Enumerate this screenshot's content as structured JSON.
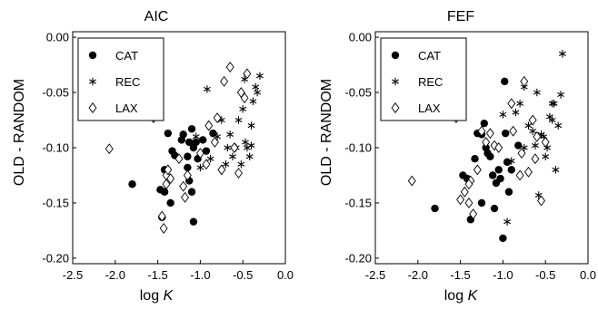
{
  "chart_data": [
    {
      "type": "scatter",
      "title": "AIC",
      "xlabel": "log",
      "xlabel_var": "K",
      "ylabel": "OLD - RANDOM",
      "xlim": [
        -2.5,
        0.0
      ],
      "ylim": [
        -0.205,
        0.005
      ],
      "xticks": [
        "-2.5",
        "-2.0",
        "-1.5",
        "-1.0",
        "-0.5",
        "0.0"
      ],
      "yticks": [
        "0.00",
        "-0.05",
        "-0.10",
        "-0.15",
        "-0.20"
      ],
      "legend_position": "top-left",
      "series": [
        {
          "name": "CAT",
          "marker": "filled-circle",
          "points": [
            [
              -1.8,
              -0.133
            ],
            [
              -1.47,
              -0.138
            ],
            [
              -1.42,
              -0.12
            ],
            [
              -1.38,
              -0.087
            ],
            [
              -1.33,
              -0.103
            ],
            [
              -1.3,
              -0.107
            ],
            [
              -1.42,
              -0.14
            ],
            [
              -1.35,
              -0.15
            ],
            [
              -1.22,
              -0.093
            ],
            [
              -1.2,
              -0.088
            ],
            [
              -1.13,
              -0.095
            ],
            [
              -1.1,
              -0.083
            ],
            [
              -1.08,
              -0.1
            ],
            [
              -1.05,
              -0.095
            ],
            [
              -1.03,
              -0.11
            ],
            [
              -1.15,
              -0.108
            ],
            [
              -1.13,
              -0.13
            ],
            [
              -1.1,
              -0.14
            ],
            [
              -1.15,
              -0.118
            ],
            [
              -0.97,
              -0.093
            ],
            [
              -0.93,
              -0.103
            ],
            [
              -0.85,
              -0.087
            ],
            [
              -1.08,
              -0.167
            ],
            [
              -1.45,
              -0.163
            ]
          ]
        },
        {
          "name": "REC",
          "marker": "asterisk",
          "points": [
            [
              -0.92,
              -0.047
            ],
            [
              -0.75,
              -0.075
            ],
            [
              -0.65,
              -0.088
            ],
            [
              -0.58,
              -0.1
            ],
            [
              -0.55,
              -0.075
            ],
            [
              -0.5,
              -0.065
            ],
            [
              -0.48,
              -0.038
            ],
            [
              -0.47,
              -0.095
            ],
            [
              -0.45,
              -0.1
            ],
            [
              -0.42,
              -0.108
            ],
            [
              -0.4,
              -0.098
            ],
            [
              -0.38,
              -0.058
            ],
            [
              -0.35,
              -0.045
            ],
            [
              -0.33,
              -0.05
            ],
            [
              -0.3,
              -0.035
            ],
            [
              -0.52,
              -0.115
            ],
            [
              -0.62,
              -0.108
            ],
            [
              -0.7,
              -0.115
            ],
            [
              -0.8,
              -0.09
            ],
            [
              -1.0,
              -0.118
            ],
            [
              -1.05,
              -0.09
            ],
            [
              -0.68,
              -0.1
            ],
            [
              -0.4,
              -0.08
            ],
            [
              -0.88,
              -0.11
            ]
          ]
        },
        {
          "name": "LAX",
          "marker": "open-diamond",
          "points": [
            [
              -2.07,
              -0.101
            ],
            [
              -1.55,
              -0.073
            ],
            [
              -1.4,
              -0.125
            ],
            [
              -1.38,
              -0.12
            ],
            [
              -1.45,
              -0.162
            ],
            [
              -1.43,
              -0.173
            ],
            [
              -1.4,
              -0.133
            ],
            [
              -1.2,
              -0.135
            ],
            [
              -1.18,
              -0.145
            ],
            [
              -1.15,
              -0.125
            ],
            [
              -1.0,
              -0.105
            ],
            [
              -0.93,
              -0.115
            ],
            [
              -0.9,
              -0.08
            ],
            [
              -0.8,
              -0.073
            ],
            [
              -0.72,
              -0.04
            ],
            [
              -0.65,
              -0.027
            ],
            [
              -0.6,
              -0.1
            ],
            [
              -0.55,
              -0.123
            ],
            [
              -0.52,
              -0.05
            ],
            [
              -0.48,
              -0.055
            ],
            [
              -0.45,
              -0.033
            ],
            [
              -0.75,
              -0.12
            ],
            [
              -0.83,
              -0.095
            ],
            [
              -1.35,
              -0.128
            ],
            [
              -1.25,
              -0.11
            ]
          ]
        }
      ]
    },
    {
      "type": "scatter",
      "title": "FEF",
      "xlabel": "log",
      "xlabel_var": "K",
      "ylabel": "OLD - RANDOM",
      "xlim": [
        -2.5,
        0.0
      ],
      "ylim": [
        -0.205,
        0.005
      ],
      "xticks": [
        "-2.5",
        "-2.0",
        "-1.5",
        "-1.0",
        "-0.5",
        "0.0"
      ],
      "yticks": [
        "0.00",
        "-0.05",
        "-0.10",
        "-0.15",
        "-0.20"
      ],
      "legend_position": "top-left",
      "series": [
        {
          "name": "CAT",
          "marker": "filled-circle",
          "points": [
            [
              -1.8,
              -0.155
            ],
            [
              -1.47,
              -0.125
            ],
            [
              -1.42,
              -0.128
            ],
            [
              -1.38,
              -0.165
            ],
            [
              -1.33,
              -0.11
            ],
            [
              -1.3,
              -0.087
            ],
            [
              -1.25,
              -0.088
            ],
            [
              -1.22,
              -0.078
            ],
            [
              -1.2,
              -0.1
            ],
            [
              -1.18,
              -0.105
            ],
            [
              -1.15,
              -0.108
            ],
            [
              -1.12,
              -0.125
            ],
            [
              -1.08,
              -0.132
            ],
            [
              -1.05,
              -0.12
            ],
            [
              -1.03,
              -0.128
            ],
            [
              -0.98,
              -0.04
            ],
            [
              -0.97,
              -0.087
            ],
            [
              -0.95,
              -0.113
            ],
            [
              -0.9,
              -0.12
            ],
            [
              -0.82,
              -0.098
            ],
            [
              -1.0,
              -0.182
            ],
            [
              -1.1,
              -0.155
            ],
            [
              -1.25,
              -0.15
            ],
            [
              -0.93,
              -0.14
            ]
          ]
        },
        {
          "name": "REC",
          "marker": "asterisk",
          "points": [
            [
              -0.3,
              -0.015
            ],
            [
              -0.32,
              -0.052
            ],
            [
              -0.35,
              -0.08
            ],
            [
              -0.38,
              -0.12
            ],
            [
              -0.4,
              -0.06
            ],
            [
              -0.42,
              -0.075
            ],
            [
              -0.45,
              -0.072
            ],
            [
              -0.48,
              -0.1
            ],
            [
              -0.5,
              -0.108
            ],
            [
              -0.52,
              -0.09
            ],
            [
              -0.55,
              -0.088
            ],
            [
              -0.58,
              -0.143
            ],
            [
              -0.62,
              -0.098
            ],
            [
              -0.65,
              -0.085
            ],
            [
              -0.7,
              -0.08
            ],
            [
              -0.75,
              -0.1
            ],
            [
              -0.8,
              -0.06
            ],
            [
              -0.85,
              -0.068
            ],
            [
              -0.9,
              -0.112
            ],
            [
              -1.0,
              -0.07
            ],
            [
              -0.95,
              -0.167
            ],
            [
              -0.75,
              -0.045
            ],
            [
              -0.6,
              -0.05
            ],
            [
              -0.42,
              -0.06
            ]
          ]
        },
        {
          "name": "LAX",
          "marker": "open-diamond",
          "points": [
            [
              -2.07,
              -0.13
            ],
            [
              -1.55,
              -0.073
            ],
            [
              -1.5,
              -0.147
            ],
            [
              -1.45,
              -0.14
            ],
            [
              -1.4,
              -0.15
            ],
            [
              -1.38,
              -0.13
            ],
            [
              -1.35,
              -0.16
            ],
            [
              -1.3,
              -0.12
            ],
            [
              -1.25,
              -0.085
            ],
            [
              -1.2,
              -0.095
            ],
            [
              -1.1,
              -0.098
            ],
            [
              -1.05,
              -0.1
            ],
            [
              -0.9,
              -0.06
            ],
            [
              -0.8,
              -0.125
            ],
            [
              -0.75,
              -0.04
            ],
            [
              -0.7,
              -0.122
            ],
            [
              -0.65,
              -0.075
            ],
            [
              -0.6,
              -0.09
            ],
            [
              -0.55,
              -0.148
            ],
            [
              -0.5,
              -0.095
            ],
            [
              -0.88,
              -0.085
            ],
            [
              -0.62,
              -0.11
            ],
            [
              -1.15,
              -0.087
            ],
            [
              -0.78,
              -0.105
            ],
            [
              -1.4,
              -0.133
            ]
          ]
        }
      ]
    }
  ]
}
